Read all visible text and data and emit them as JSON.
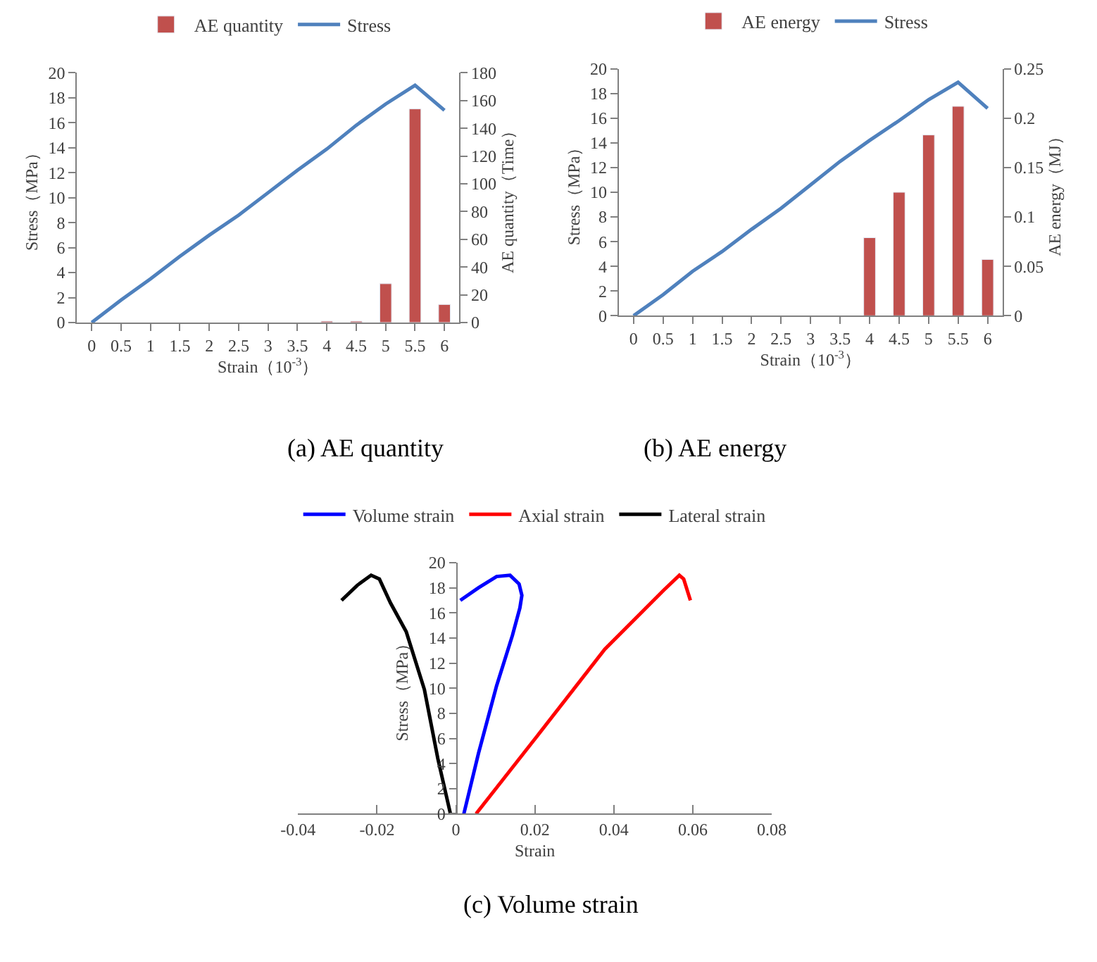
{
  "chart_data": [
    {
      "type": "bar",
      "xlabel": "Strain（10$^{-3}$）",
      "ylabel": "Stress（MPa）",
      "y2label": "AE quantity（Time）",
      "categories": [
        "0",
        "0.5",
        "1",
        "1.5",
        "2",
        "2.5",
        "3",
        "3.5",
        "4",
        "4.5",
        "5",
        "5.5",
        "6"
      ],
      "series": [
        {
          "name": "AE quantity",
          "color": "#c0504d",
          "axis": "y2",
          "values": [
            null,
            null,
            null,
            null,
            null,
            null,
            null,
            null,
            1,
            1,
            28,
            154,
            13
          ]
        },
        {
          "name": "Stress",
          "type": "line",
          "color": "#4f81bd",
          "values": [
            0,
            1.8,
            3.5,
            5.3,
            7,
            8.6,
            10.4,
            12.2,
            13.9,
            15.8,
            17.5,
            19,
            17
          ]
        }
      ],
      "ylim": [
        0,
        20
      ],
      "yticks": [
        0,
        2,
        4,
        6,
        8,
        10,
        12,
        14,
        16,
        18,
        20
      ],
      "y2lim": [
        0,
        180
      ],
      "y2ticks": [
        0,
        20,
        40,
        60,
        80,
        100,
        120,
        140,
        160,
        180
      ],
      "legend": "top",
      "annotations": [
        "(a) AE quantity"
      ]
    },
    {
      "type": "bar",
      "xlabel": "Strain（10$^{-3}$）",
      "ylabel": "Stress（MPa）",
      "y2label": "AE energy（MJ）",
      "categories": [
        "0",
        "0.5",
        "1",
        "1.5",
        "2",
        "2.5",
        "3",
        "3.5",
        "4",
        "4.5",
        "5",
        "5.5",
        "6"
      ],
      "series": [
        {
          "name": "AE energy",
          "color": "#c0504d",
          "axis": "y2",
          "values": [
            null,
            null,
            null,
            null,
            null,
            null,
            null,
            null,
            0.079,
            0.125,
            0.183,
            0.212,
            0.057
          ]
        },
        {
          "name": "Stress",
          "type": "line",
          "color": "#4f81bd",
          "values": [
            0,
            1.7,
            3.6,
            5.2,
            7,
            8.7,
            10.6,
            12.5,
            14.2,
            15.8,
            17.5,
            18.9,
            16.8
          ]
        }
      ],
      "ylim": [
        0,
        20
      ],
      "yticks": [
        0,
        2,
        4,
        6,
        8,
        10,
        12,
        14,
        16,
        18,
        20
      ],
      "y2lim": [
        0,
        0.25
      ],
      "y2ticks": [
        0,
        0.05,
        0.1,
        0.15,
        0.2,
        0.25
      ],
      "legend": "top",
      "annotations": [
        "(b) AE energy"
      ]
    },
    {
      "type": "line",
      "xlabel": "Strain",
      "ylabel": "Stress（MPa）",
      "series": [
        {
          "name": "Volume strain",
          "color": "#0000ff",
          "x": [
            0.002,
            0.0057,
            0.0103,
            0.0143,
            0.0162,
            0.0167,
            0.016,
            0.0137,
            0.0103,
            0.0057,
            0.0011
          ],
          "values": [
            0,
            4.8,
            10.2,
            14.2,
            16.4,
            17.4,
            18.3,
            19,
            18.9,
            18,
            17
          ]
        },
        {
          "name": "Axial strain",
          "color": "#ff0000",
          "x": [
            0.0051,
            0.0206,
            0.0377,
            0.0526,
            0.0566,
            0.0577,
            0.0594
          ],
          "values": [
            0,
            6.2,
            13.1,
            17.8,
            19,
            18.7,
            17
          ]
        },
        {
          "name": "Lateral strain",
          "color": "#000000",
          "x": [
            -0.0014,
            -0.0046,
            -0.008,
            -0.0126,
            -0.0166,
            -0.0194,
            -0.0215,
            -0.025,
            -0.029
          ],
          "values": [
            0,
            4.4,
            9.9,
            14.5,
            16.8,
            18.7,
            19,
            18.2,
            17
          ]
        }
      ],
      "xlim": [
        -0.04,
        0.08
      ],
      "xticks": [
        -0.04,
        -0.02,
        0,
        0.02,
        0.04,
        0.06,
        0.08
      ],
      "ylim": [
        0,
        20
      ],
      "yticks": [
        0,
        2,
        4,
        6,
        8,
        10,
        12,
        14,
        16,
        18,
        20
      ],
      "legend": "top",
      "annotations": [
        "(c) Volume strain"
      ]
    }
  ]
}
